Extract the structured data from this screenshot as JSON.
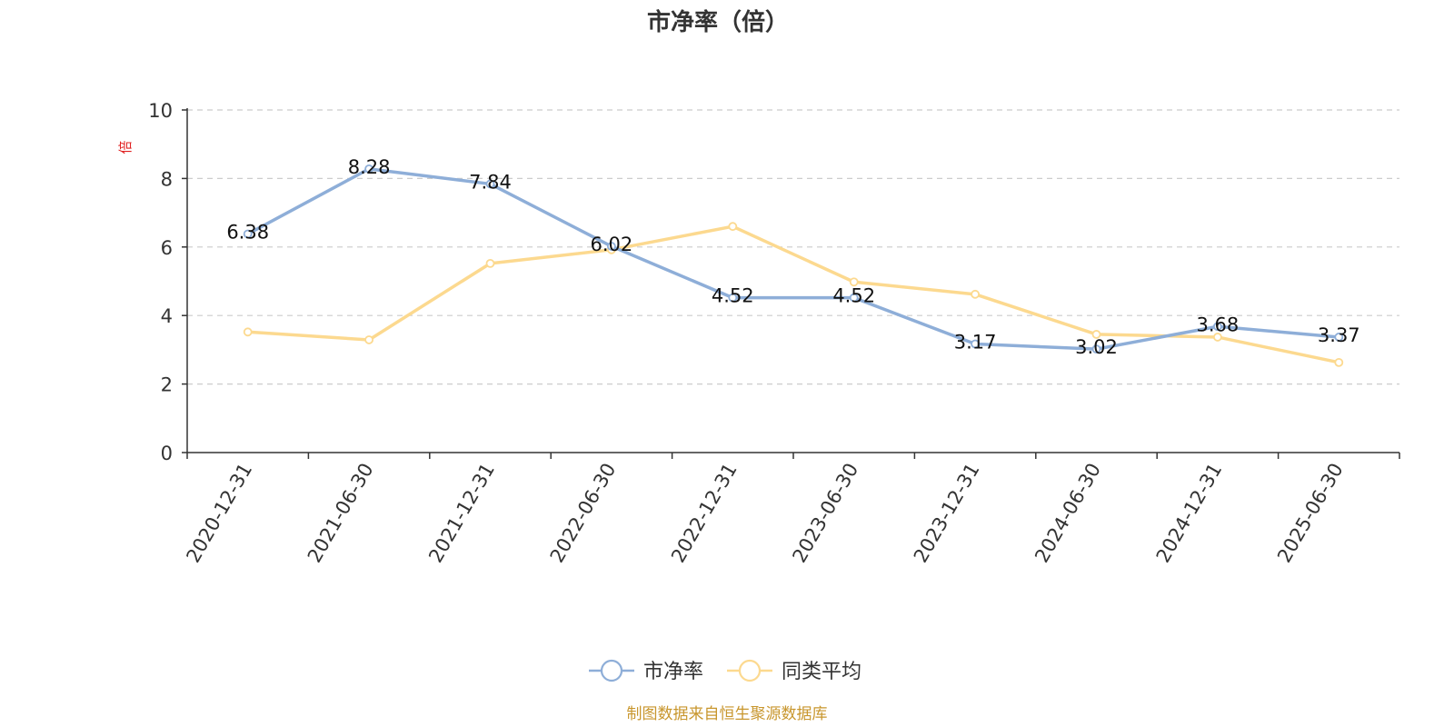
{
  "chart_data": {
    "type": "line",
    "title": "市净率（倍）",
    "y_unit": "倍",
    "categories": [
      "2020-12-31",
      "2021-06-30",
      "2021-12-31",
      "2022-06-30",
      "2022-12-31",
      "2023-06-30",
      "2023-12-31",
      "2024-06-30",
      "2024-12-31",
      "2025-06-30"
    ],
    "ylim": [
      0,
      10
    ],
    "y_ticks": [
      0,
      2,
      4,
      6,
      8,
      10
    ],
    "grid": true,
    "legend_position": "bottom-center",
    "series": [
      {
        "name": "市净率",
        "color": "#8eaed8",
        "values": [
          6.38,
          8.28,
          7.84,
          6.02,
          4.52,
          4.52,
          3.17,
          3.02,
          3.68,
          3.37
        ],
        "labels": [
          "6.38",
          "8.28",
          "7.84",
          "6.02",
          "4.52",
          "4.52",
          "3.17",
          "3.02",
          "3.68",
          "3.37"
        ]
      },
      {
        "name": "同类平均",
        "color": "#fcd98f",
        "values": [
          3.52,
          3.29,
          5.52,
          5.92,
          6.6,
          4.98,
          4.62,
          3.45,
          3.37,
          2.63
        ]
      }
    ],
    "source": "制图数据来自恒生聚源数据库",
    "source_color": "#c8962d",
    "unit_color": "#e02020"
  }
}
